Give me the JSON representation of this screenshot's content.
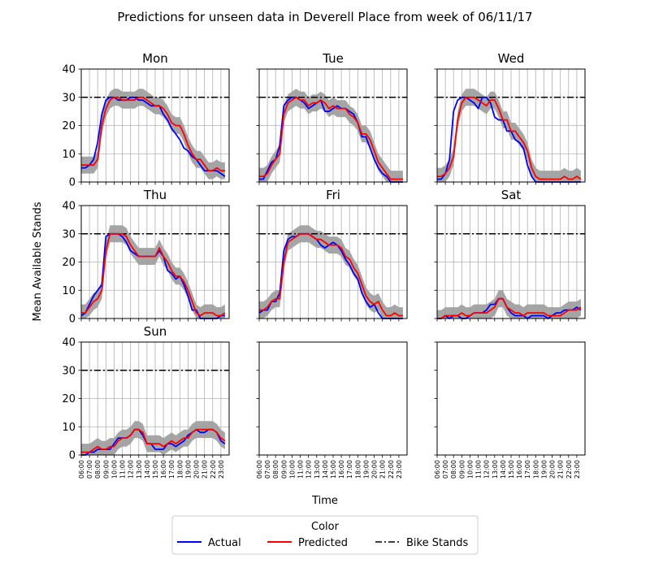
{
  "figure": {
    "title": "Predictions for unseen data in Deverell Place from week of 06/11/17",
    "xlabel": "Time",
    "ylabel": "Mean Available Stands"
  },
  "legend": {
    "title": "Color",
    "items": [
      {
        "label": "Actual",
        "color": "#0000ff",
        "style": "solid"
      },
      {
        "label": "Predicted",
        "color": "#ff0000",
        "style": "solid"
      },
      {
        "label": "Bike Stands",
        "color": "#000000",
        "style": "dashdot"
      }
    ]
  },
  "chart_data": {
    "type": "line",
    "x_ticks": [
      "06:00",
      "07:00",
      "08:00",
      "09:00",
      "10:00",
      "11:00",
      "12:00",
      "13:00",
      "14:00",
      "15:00",
      "16:00",
      "17:00",
      "18:00",
      "19:00",
      "20:00",
      "21:00",
      "22:00",
      "23:00"
    ],
    "xlim": [
      "06:00",
      "24:00"
    ],
    "ylim": [
      0,
      40
    ],
    "y_ticks": [
      0,
      10,
      20,
      30,
      40
    ],
    "bike_stands": 30,
    "band_halfwidth": 3,
    "grid": true,
    "series_colors": {
      "actual": "#0000ff",
      "predicted": "#ff0000",
      "band": "#a0a0a0",
      "bike_stands": "#000000"
    },
    "panels": [
      {
        "title": "Mon",
        "actual": [
          5,
          5,
          6,
          8,
          14,
          24,
          29,
          30,
          30,
          29,
          29,
          29,
          30,
          30,
          29,
          29,
          28,
          27,
          27,
          27,
          24,
          22,
          19,
          17,
          15,
          12,
          11,
          9,
          8,
          6,
          4,
          4,
          4,
          4,
          3,
          2
        ],
        "predicted": [
          6,
          6,
          6,
          6,
          8,
          20,
          26,
          29,
          30,
          30,
          29,
          29,
          29,
          29,
          30,
          30,
          29,
          28,
          27,
          27,
          26,
          24,
          21,
          20,
          20,
          17,
          13,
          10,
          8,
          8,
          6,
          4,
          4,
          5,
          4,
          4
        ]
      },
      {
        "title": "Tue",
        "actual": [
          1,
          1,
          4,
          7,
          8,
          13,
          27,
          29,
          30,
          30,
          29,
          28,
          26,
          27,
          28,
          29,
          25,
          25,
          26,
          27,
          26,
          26,
          25,
          24,
          21,
          16,
          16,
          12,
          8,
          5,
          3,
          2,
          0,
          0,
          0,
          0
        ],
        "predicted": [
          2,
          2,
          3,
          6,
          8,
          10,
          24,
          28,
          29,
          30,
          29,
          29,
          27,
          28,
          28,
          29,
          28,
          26,
          27,
          26,
          26,
          26,
          24,
          23,
          21,
          17,
          17,
          15,
          11,
          7,
          5,
          3,
          1,
          1,
          1,
          1
        ]
      },
      {
        "title": "Wed",
        "actual": [
          1,
          1,
          3,
          8,
          25,
          29,
          30,
          30,
          29,
          28,
          26,
          30,
          30,
          28,
          23,
          22,
          22,
          18,
          18,
          15,
          14,
          12,
          6,
          2,
          0,
          0,
          0,
          0,
          0,
          0,
          0,
          0,
          0,
          0,
          0,
          0
        ],
        "predicted": [
          2,
          2,
          3,
          5,
          9,
          22,
          28,
          30,
          30,
          30,
          29,
          28,
          27,
          29,
          29,
          26,
          22,
          22,
          18,
          18,
          16,
          14,
          11,
          5,
          2,
          1,
          1,
          1,
          1,
          1,
          1,
          2,
          1,
          1,
          2,
          1
        ]
      },
      {
        "title": "Thu",
        "actual": [
          1,
          2,
          5,
          8,
          10,
          12,
          29,
          30,
          30,
          30,
          29,
          27,
          24,
          23,
          22,
          22,
          22,
          22,
          22,
          24,
          22,
          17,
          16,
          14,
          15,
          12,
          8,
          3,
          3,
          0,
          0,
          0,
          0,
          0,
          1,
          1
        ],
        "predicted": [
          2,
          2,
          4,
          6,
          7,
          10,
          24,
          30,
          30,
          30,
          30,
          29,
          26,
          24,
          22,
          22,
          22,
          22,
          22,
          25,
          22,
          20,
          17,
          15,
          15,
          13,
          10,
          6,
          2,
          1,
          2,
          2,
          2,
          1,
          1,
          2
        ]
      },
      {
        "title": "Fri",
        "actual": [
          2,
          3,
          3,
          6,
          6,
          9,
          24,
          28,
          29,
          29,
          30,
          30,
          30,
          29,
          28,
          26,
          25,
          26,
          27,
          26,
          24,
          21,
          19,
          16,
          14,
          9,
          6,
          4,
          5,
          2,
          0,
          0,
          0,
          0,
          0,
          0
        ],
        "predicted": [
          3,
          3,
          4,
          6,
          7,
          7,
          20,
          27,
          28,
          29,
          30,
          30,
          30,
          29,
          28,
          28,
          27,
          26,
          26,
          26,
          25,
          22,
          21,
          18,
          16,
          12,
          8,
          6,
          5,
          6,
          3,
          1,
          1,
          2,
          1,
          1
        ]
      },
      {
        "title": "Sat",
        "actual": [
          0,
          0,
          1,
          0,
          1,
          1,
          0,
          0,
          1,
          2,
          2,
          2,
          3,
          5,
          5,
          7,
          7,
          4,
          2,
          1,
          1,
          1,
          0,
          1,
          1,
          1,
          1,
          0,
          1,
          2,
          2,
          3,
          3,
          3,
          4,
          3
        ],
        "predicted": [
          0,
          0,
          1,
          1,
          1,
          1,
          2,
          1,
          1,
          2,
          2,
          2,
          2,
          3,
          4,
          7,
          7,
          4,
          3,
          2,
          2,
          1,
          2,
          2,
          2,
          2,
          2,
          1,
          1,
          1,
          1,
          2,
          3,
          3,
          3,
          4
        ]
      },
      {
        "title": "Sun",
        "actual": [
          0,
          0,
          1,
          1,
          2,
          2,
          2,
          2,
          4,
          6,
          6,
          6,
          7,
          9,
          9,
          7,
          4,
          4,
          2,
          2,
          2,
          4,
          4,
          3,
          4,
          5,
          7,
          8,
          9,
          8,
          8,
          9,
          9,
          8,
          5,
          4
        ],
        "predicted": [
          1,
          1,
          1,
          2,
          3,
          2,
          2,
          3,
          3,
          5,
          6,
          6,
          7,
          9,
          9,
          8,
          4,
          4,
          4,
          4,
          3,
          4,
          5,
          4,
          5,
          6,
          6,
          8,
          9,
          9,
          9,
          9,
          9,
          8,
          6,
          5
        ]
      }
    ]
  }
}
